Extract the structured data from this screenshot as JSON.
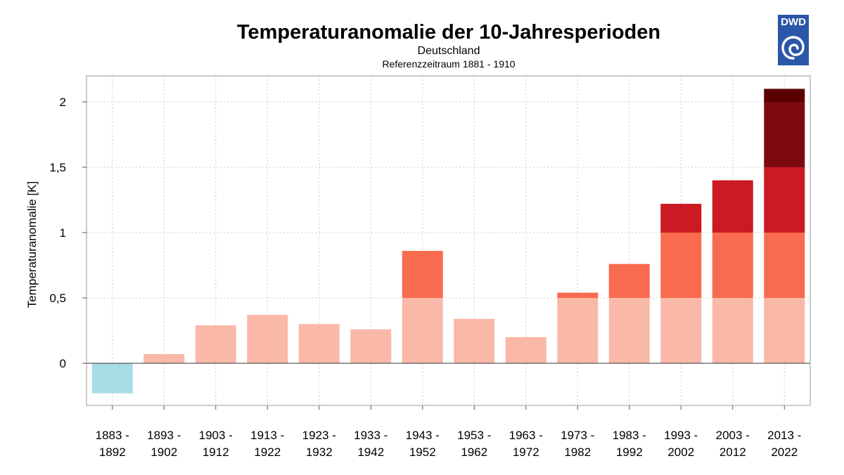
{
  "header": {
    "title": "Temperaturanomalie der 10-Jahresperioden",
    "subtitle": "Deutschland",
    "reference": "Referenzzeitraum 1881 - 1910"
  },
  "logo": {
    "text": "DWD",
    "color": "#2a57a8",
    "icon": "dwd-swirl-icon"
  },
  "colors": {
    "negative": "#a8dde6",
    "band_0_05": "#fab8a8",
    "band_05_1": "#f96b4e",
    "band_1_15": "#cb1a22",
    "band_15_2": "#7c0a0f",
    "band_2_25": "#5a0005"
  },
  "chart_data": {
    "type": "bar",
    "title": "Temperaturanomalie der 10-Jahresperioden",
    "subtitle": "Deutschland",
    "note": "Referenzzeitraum 1881 - 1910",
    "xlabel": "",
    "ylabel": "Temperaturanomalie [K]",
    "ylim": [
      -0.33,
      2.15
    ],
    "yticks": [
      0,
      0.5,
      1,
      1.5,
      2
    ],
    "ytick_labels": [
      "0",
      "0,5",
      "1",
      "1,5",
      "2"
    ],
    "grid": true,
    "categories": [
      [
        "1883 -",
        "1892"
      ],
      [
        "1893 -",
        "1902"
      ],
      [
        "1903 -",
        "1912"
      ],
      [
        "1913 -",
        "1922"
      ],
      [
        "1923 -",
        "1932"
      ],
      [
        "1933 -",
        "1942"
      ],
      [
        "1943 -",
        "1952"
      ],
      [
        "1953 -",
        "1962"
      ],
      [
        "1963 -",
        "1972"
      ],
      [
        "1973 -",
        "1982"
      ],
      [
        "1983 -",
        "1992"
      ],
      [
        "1993 -",
        "2002"
      ],
      [
        "2003 -",
        "2012"
      ],
      [
        "2013 -",
        "2022"
      ]
    ],
    "values": [
      -0.23,
      0.07,
      0.29,
      0.37,
      0.3,
      0.26,
      0.86,
      0.34,
      0.2,
      0.54,
      0.76,
      1.22,
      1.4,
      2.1
    ]
  }
}
